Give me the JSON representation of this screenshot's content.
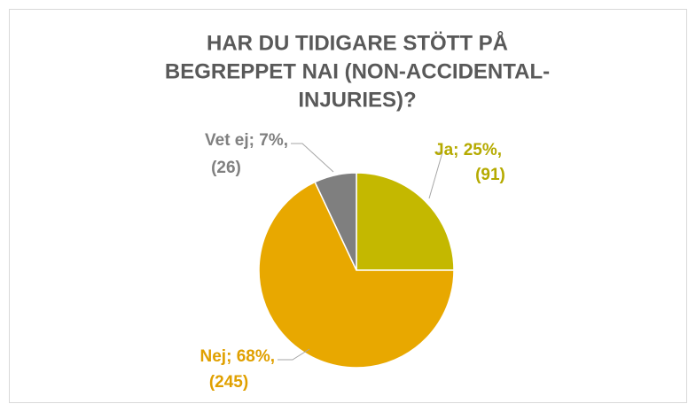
{
  "chart_data": {
    "type": "pie",
    "title": [
      "HAR DU TIDIGARE STÖTT PÅ",
      "BEGREPPET NAI (NON-ACCIDENTAL-",
      "INJURIES)?"
    ],
    "values": [
      25,
      68,
      7
    ],
    "value_labels": [
      "Ja; 25%,",
      "Nej; 68%,",
      "Vet ej; 7%,"
    ],
    "counts": [
      91,
      245,
      26
    ],
    "count_labels": [
      "(91)",
      "(245)",
      "(26)"
    ],
    "colors": [
      "#c4b800",
      "#e8a800",
      "#7f7f7f"
    ],
    "label_colors": [
      "#b5aa00",
      "#e0a000",
      "#808080"
    ]
  }
}
